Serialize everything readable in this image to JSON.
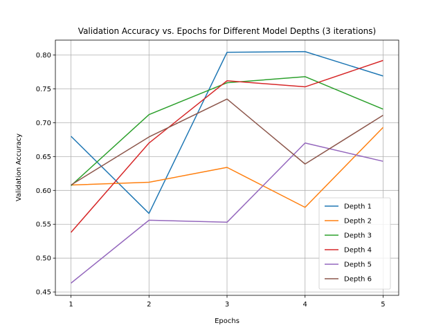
{
  "chart_data": {
    "type": "line",
    "title": "Validation Accuracy vs. Epochs for Different Model Depths (3 iterations)",
    "xlabel": "Epochs",
    "ylabel": "Validation Accuracy",
    "x": [
      1,
      2,
      3,
      4,
      5
    ],
    "xlim": [
      0.8,
      5.2
    ],
    "ylim": [
      0.445,
      0.822
    ],
    "xticks": [
      1,
      2,
      3,
      4,
      5
    ],
    "yticks": [
      0.45,
      0.5,
      0.55,
      0.6,
      0.65,
      0.7,
      0.75,
      0.8
    ],
    "ytick_labels": [
      "0.45",
      "0.50",
      "0.55",
      "0.60",
      "0.65",
      "0.70",
      "0.75",
      "0.80"
    ],
    "grid": true,
    "legend_position": "lower-right",
    "series": [
      {
        "name": "Depth 1",
        "color": "#1f77b4",
        "values": [
          0.68,
          0.566,
          0.804,
          0.805,
          0.769
        ]
      },
      {
        "name": "Depth 2",
        "color": "#ff7f0e",
        "values": [
          0.608,
          0.612,
          0.634,
          0.575,
          0.693
        ]
      },
      {
        "name": "Depth 3",
        "color": "#2ca02c",
        "values": [
          0.607,
          0.712,
          0.759,
          0.768,
          0.72
        ]
      },
      {
        "name": "Depth 4",
        "color": "#d62728",
        "values": [
          0.538,
          0.67,
          0.762,
          0.753,
          0.792
        ]
      },
      {
        "name": "Depth 5",
        "color": "#9467bd",
        "values": [
          0.463,
          0.556,
          0.553,
          0.67,
          0.643
        ]
      },
      {
        "name": "Depth 6",
        "color": "#8c564b",
        "values": [
          0.608,
          0.679,
          0.735,
          0.639,
          0.711
        ]
      }
    ]
  }
}
